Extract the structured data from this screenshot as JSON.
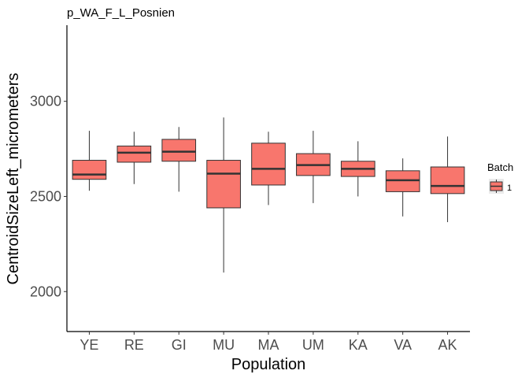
{
  "chart_data": {
    "type": "boxplot",
    "title": "p_WA_F_L_Posnien",
    "xlabel": "Population",
    "ylabel": "CentroidSizeLeft_micrometers",
    "ylim": [
      1790,
      3400
    ],
    "yticks": [
      2000,
      2500,
      3000
    ],
    "grid": false,
    "legend": {
      "title": "Batch",
      "entries": [
        "1"
      ],
      "placement": "right"
    },
    "fill_color": "#F8766D",
    "categories": [
      "YE",
      "RE",
      "GI",
      "MU",
      "MA",
      "UM",
      "KA",
      "VA",
      "AK"
    ],
    "boxes": [
      {
        "category": "YE",
        "whisker_low": 2530,
        "q1": 2590,
        "median": 2615,
        "q3": 2690,
        "whisker_high": 2845
      },
      {
        "category": "RE",
        "whisker_low": 2565,
        "q1": 2680,
        "median": 2730,
        "q3": 2765,
        "whisker_high": 2840
      },
      {
        "category": "GI",
        "whisker_low": 2525,
        "q1": 2685,
        "median": 2735,
        "q3": 2800,
        "whisker_high": 2865
      },
      {
        "category": "MU",
        "whisker_low": 2100,
        "q1": 2440,
        "median": 2620,
        "q3": 2690,
        "whisker_high": 2915
      },
      {
        "category": "MA",
        "whisker_low": 2455,
        "q1": 2560,
        "median": 2645,
        "q3": 2780,
        "whisker_high": 2840
      },
      {
        "category": "UM",
        "whisker_low": 2465,
        "q1": 2610,
        "median": 2665,
        "q3": 2725,
        "whisker_high": 2845
      },
      {
        "category": "KA",
        "whisker_low": 2500,
        "q1": 2605,
        "median": 2645,
        "q3": 2685,
        "whisker_high": 2790
      },
      {
        "category": "VA",
        "whisker_low": 2395,
        "q1": 2525,
        "median": 2585,
        "q3": 2635,
        "whisker_high": 2700
      },
      {
        "category": "AK",
        "whisker_low": 2365,
        "q1": 2515,
        "median": 2555,
        "q3": 2655,
        "whisker_high": 2815
      }
    ]
  }
}
